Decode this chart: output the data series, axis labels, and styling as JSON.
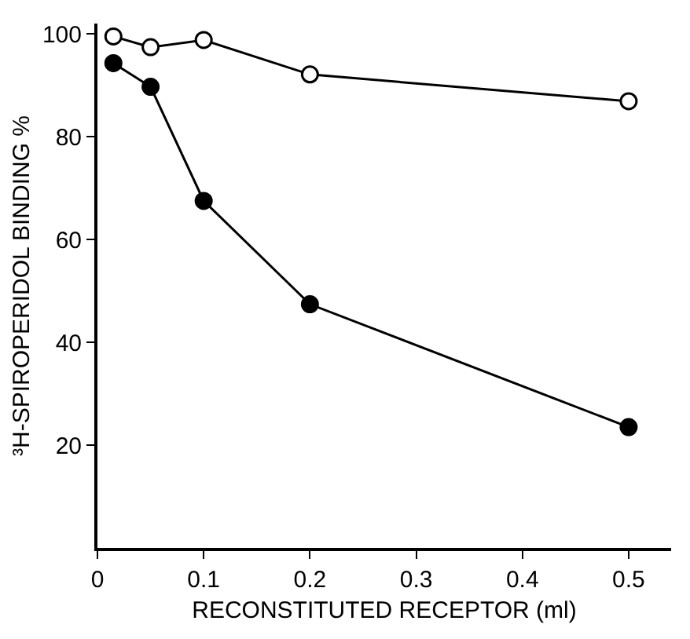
{
  "chart_data": {
    "type": "line",
    "xlabel": "RECONSTITUTED RECEPTOR (ml)",
    "ylabel": "³H-SPIROPERIDOL BINDING %",
    "x": [
      0.015,
      0.05,
      0.1,
      0.2,
      0.5
    ],
    "series": [
      {
        "color": "#000000",
        "marker": "open circle",
        "values": [
          99.5,
          97.4,
          98.8,
          92.1,
          86.9
        ]
      },
      {
        "color": "#000000",
        "marker": "circle",
        "values": [
          94.3,
          89.7,
          67.5,
          47.4,
          23.5
        ]
      }
    ],
    "xlim": [
      0,
      0.54
    ],
    "ylim": [
      0,
      102
    ],
    "xticks": [
      0,
      0.1,
      0.2,
      0.3,
      0.4,
      0.5
    ],
    "yticks": [
      20,
      40,
      60,
      80,
      100
    ],
    "line_style": "solid"
  }
}
